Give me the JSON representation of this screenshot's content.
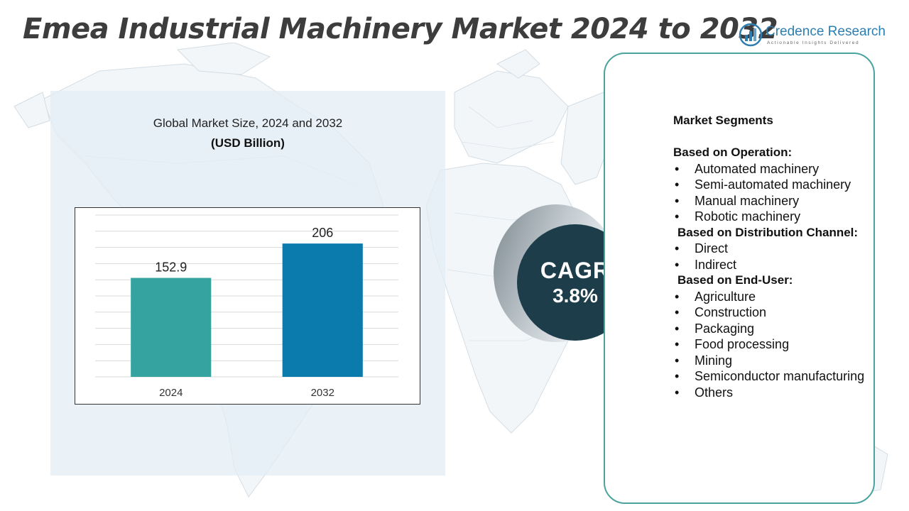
{
  "title": "Emea Industrial Machinery Market 2024 to 2032",
  "brand": {
    "name": "Credence Research",
    "tagline": "Actionable Insights Delivered",
    "icon": "bar-chart-logo-icon",
    "color": "#2c7fb0"
  },
  "chart": {
    "heading": "Global Market Size, 2024 and 2032",
    "unit": "(USD Billion)"
  },
  "chart_data": {
    "type": "bar",
    "categories": [
      "2024",
      "2032"
    ],
    "values": [
      152.9,
      206
    ],
    "value_labels": [
      "152.9",
      "206"
    ],
    "title": "Global Market Size, 2024 and 2032",
    "subtitle": "(USD Billion)",
    "xlabel": "",
    "ylabel": "",
    "ylim": [
      0,
      250
    ],
    "grid": true,
    "legend": "none",
    "colors": [
      "#35a3a0",
      "#0a7bac"
    ]
  },
  "cagr": {
    "label": "CAGR",
    "value": "3.8%",
    "color": "#1d3d4b"
  },
  "segments": {
    "title": "Market Segments",
    "groups": [
      {
        "title": "Based on Operation:",
        "items": [
          "Automated machinery",
          "Semi-automated machinery",
          "Manual machinery",
          "Robotic machinery"
        ]
      },
      {
        "title": "Based on Distribution Channel:",
        "items": [
          "Direct",
          "Indirect"
        ]
      },
      {
        "title": "Based on End-User:",
        "items": [
          "Agriculture",
          "Construction",
          "Packaging",
          "Food processing",
          "Mining",
          "Semiconductor manufacturing",
          "Others"
        ]
      }
    ]
  }
}
